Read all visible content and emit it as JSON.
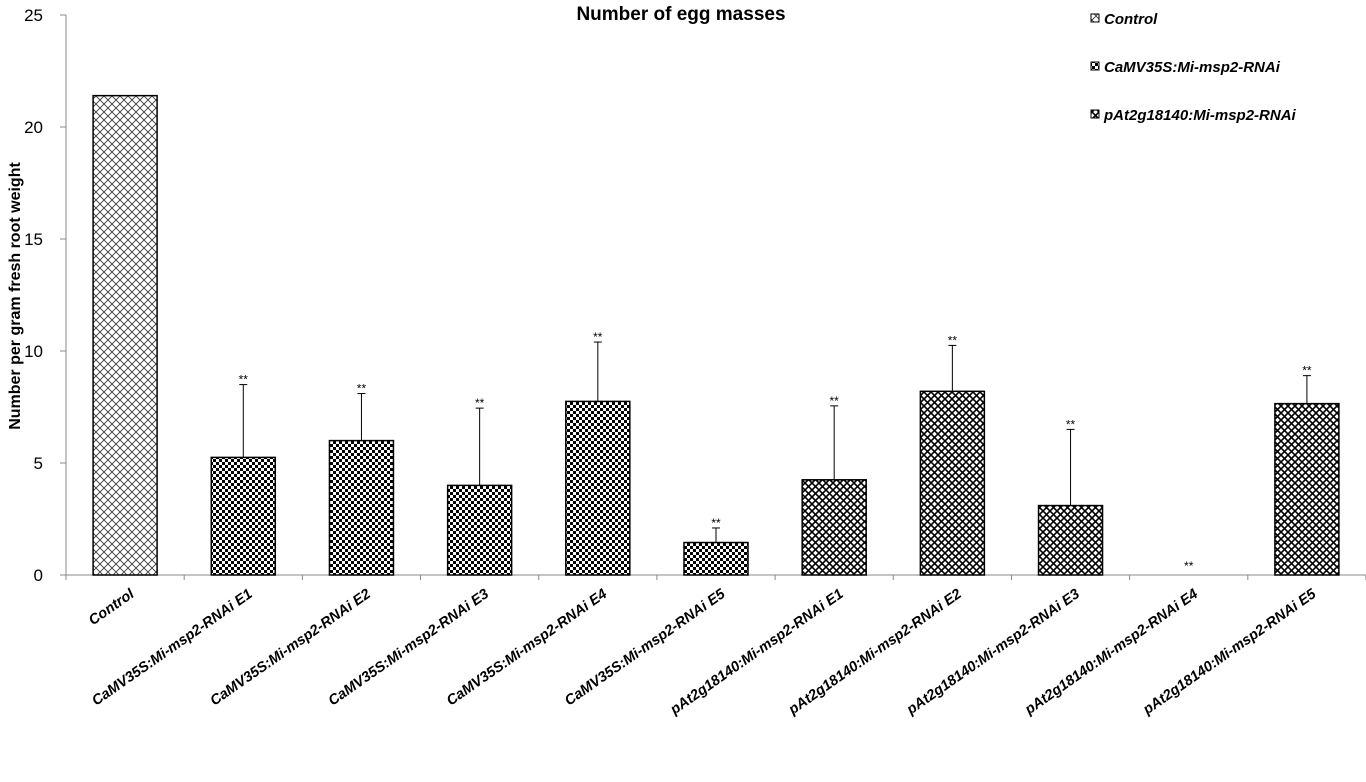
{
  "chart_data": {
    "type": "bar",
    "title": "Number of egg masses",
    "xlabel": "",
    "ylabel": "Number per gram fresh root weight",
    "ylim": [
      0,
      25
    ],
    "yticks": [
      "0",
      "5",
      "10",
      "15",
      "20",
      "25"
    ],
    "grid": false,
    "legend_position": "top-right",
    "legend": [
      {
        "label": "Control",
        "pattern": "diagonal"
      },
      {
        "label": "CaMV35S:Mi-msp2-RNAi",
        "pattern": "checker"
      },
      {
        "label": "pAt2g18140:Mi-msp2-RNAi",
        "pattern": "crosshatch"
      }
    ],
    "categories": [
      "Control",
      "CaMV35S:Mi-msp2-RNAi E1",
      "CaMV35S:Mi-msp2-RNAi E2",
      "CaMV35S:Mi-msp2-RNAi E3",
      "CaMV35S:Mi-msp2-RNAi E4",
      "CaMV35S:Mi-msp2-RNAi E5",
      "pAt2g18140:Mi-msp2-RNAi E1",
      "pAt2g18140:Mi-msp2-RNAi E2",
      "pAt2g18140:Mi-msp2-RNAi E3",
      "pAt2g18140:Mi-msp2-RNAi E4",
      "pAt2g18140:Mi-msp2-RNAi E5"
    ],
    "groups": [
      0,
      1,
      1,
      1,
      1,
      1,
      2,
      2,
      2,
      2,
      2
    ],
    "values": [
      21.4,
      5.25,
      6.0,
      4.0,
      7.75,
      1.45,
      4.25,
      8.2,
      3.1,
      0.0,
      7.65
    ],
    "error_upper": [
      null,
      3.25,
      2.1,
      3.45,
      2.65,
      0.65,
      3.3,
      2.05,
      3.4,
      0.0,
      1.25
    ],
    "significance": [
      "",
      "**",
      "**",
      "**",
      "**",
      "**",
      "**",
      "**",
      "**",
      "**",
      "**"
    ]
  }
}
